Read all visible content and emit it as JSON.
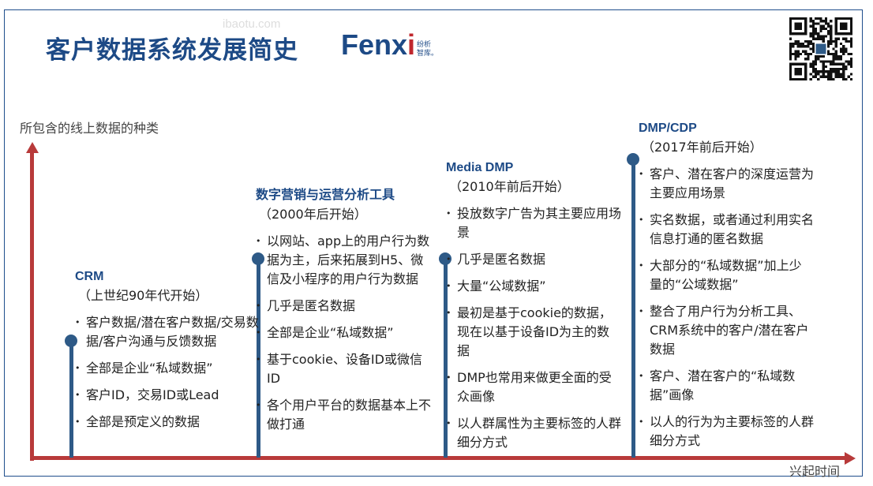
{
  "header": {
    "title": "客户数据系统发展简史",
    "logo": {
      "brand": "Fenx",
      "brand_i": "i",
      "cn_line1": "纷析",
      "cn_line2": "智库。"
    },
    "watermark": "ibaotu.com",
    "qr_code_icon": "qr-code"
  },
  "axes": {
    "y_label": "所包含的线上数据的种类",
    "x_label": "兴起时间",
    "axis_color": "#b83a3a",
    "timeline_color": "#2e5a87"
  },
  "stages": [
    {
      "name": "CRM",
      "period": "（上世纪90年代开始）",
      "bullets": [
        "客户数据/潜在客户数据/交易数据/客户沟通与反馈数据",
        "全部是企业“私域数据”",
        "客户ID，交易ID或Lead",
        "全部是预定义的数据"
      ]
    },
    {
      "name": "数字营销与运营分析工具",
      "period": "（2000年后开始）",
      "bullets": [
        "以网站、app上的用户行为数据为主，后来拓展到H5、微信及小程序的用户行为数据",
        "几乎是匿名数据",
        "全部是企业“私域数据”",
        "基于cookie、设备ID或微信ID",
        "各个用户平台的数据基本上不做打通"
      ]
    },
    {
      "name": "Media DMP",
      "period": "（2010年前后开始）",
      "bullets": [
        "投放数字广告为其主要应用场景",
        "几乎是匿名数据",
        "大量“公域数据”",
        "最初是基于cookie的数据，现在以基于设备ID为主的数据",
        "DMP也常用来做更全面的受众画像",
        "以人群属性为主要标签的人群细分方式"
      ]
    },
    {
      "name": "DMP/CDP",
      "period": "（2017年前后开始）",
      "bullets": [
        "客户、潜在客户的深度运营为主要应用场景",
        "实名数据，或者通过利用实名信息打通的匿名数据",
        "大部分的“私域数据”加上少量的“公域数据”",
        "整合了用户行为分析工具、CRM系统中的客户/潜在客户数据",
        "客户、潜在客户的“私域数据”画像",
        "以人的行为为主要标签的人群细分方式"
      ]
    }
  ]
}
